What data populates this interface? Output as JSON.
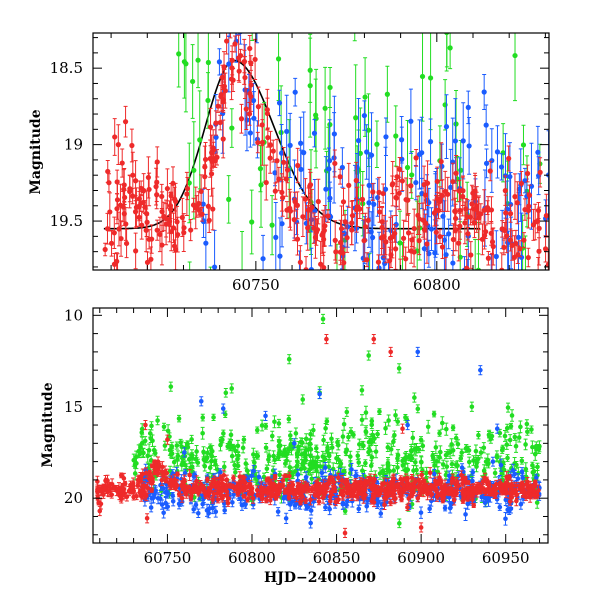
{
  "chart_data": [
    {
      "type": "scatter",
      "panel": "top",
      "title": "",
      "xlabel": "",
      "ylabel": "Magnitude",
      "xlim": [
        60705,
        60831
      ],
      "ylim": [
        18.27,
        19.82
      ],
      "y_inverted": true,
      "x_ticks": [
        60750,
        60800
      ],
      "x_tick_labels": [
        "60750",
        "60800"
      ],
      "y_ticks": [
        18.5,
        19,
        19.5
      ],
      "y_tick_labels": [
        "18.5",
        "19",
        "19.5"
      ],
      "grid": false,
      "legend": "none",
      "model_curve": {
        "color": "#000000",
        "baseline": 19.55,
        "peak_x": 60744,
        "peak_mag": 18.45,
        "rise_width": 8,
        "decay_width": 11,
        "x_range": [
          60708,
          60812
        ]
      },
      "series": [
        {
          "name": "green",
          "color": "#22dd22",
          "seed": 11,
          "x_range": [
            60728,
            60831
          ],
          "n_points": 95,
          "base": 19.3,
          "scatter": 0.55,
          "error_range": [
            0.12,
            0.35
          ],
          "bright_bias": 0.6
        },
        {
          "name": "blue",
          "color": "#1a5cff",
          "seed": 23,
          "x_range": [
            60735,
            60831
          ],
          "n_points": 150,
          "base": 19.45,
          "scatter": 0.32,
          "error_range": [
            0.08,
            0.3
          ],
          "flare": {
            "center": 60744,
            "amplitude": 1.05,
            "rise": 4,
            "decay": 7
          },
          "bright_bias": 0.25
        },
        {
          "name": "red",
          "color": "#ee2a2a",
          "seed": 37,
          "x_range": [
            60708,
            60831
          ],
          "n_points": 360,
          "base": 19.48,
          "scatter": 0.18,
          "error_range": [
            0.04,
            0.15
          ],
          "flare": {
            "center": 60744,
            "amplitude": 1.1,
            "rise": 4,
            "decay": 7
          },
          "extra_points": [
            {
              "x": 60709,
              "y": 19.55,
              "err": 0.1
            },
            {
              "x": 60711,
              "y": 18.95,
              "err": 0.12
            },
            {
              "x": 60712,
              "y": 19.0,
              "err": 0.13
            },
            {
              "x": 60714,
              "y": 18.85,
              "err": 0.1
            },
            {
              "x": 60716,
              "y": 19.2,
              "err": 0.15
            },
            {
              "x": 60719,
              "y": 19.3,
              "err": 0.11
            },
            {
              "x": 60721,
              "y": 19.75,
              "err": 0.08
            }
          ]
        }
      ]
    },
    {
      "type": "scatter",
      "panel": "bottom",
      "title": "",
      "xlabel": "HJD−2400000",
      "ylabel": "Magnitude",
      "xlim": [
        60706,
        60975
      ],
      "ylim": [
        9.6,
        22.45
      ],
      "y_inverted": true,
      "x_ticks": [
        60750,
        60800,
        60850,
        60900,
        60950
      ],
      "x_tick_labels": [
        "60750",
        "60800",
        "60850",
        "60900",
        "60950"
      ],
      "y_ticks": [
        10,
        15,
        20
      ],
      "y_tick_labels": [
        "10",
        "15",
        "20"
      ],
      "grid": false,
      "legend": "none",
      "series": [
        {
          "name": "green",
          "color": "#22dd22",
          "seed": 51,
          "x_range": [
            60730,
            60970
          ],
          "n_points": 520,
          "base": 17.9,
          "scatter": 1.15,
          "error_range": [
            0.15,
            0.35
          ],
          "outliers": [
            {
              "x": 60842,
              "y": 10.2
            },
            {
              "x": 60822,
              "y": 12.4
            },
            {
              "x": 60869,
              "y": 12.2
            },
            {
              "x": 60887,
              "y": 12.9
            },
            {
              "x": 60752,
              "y": 13.9
            },
            {
              "x": 60788,
              "y": 14.0
            },
            {
              "x": 60865,
              "y": 14.1
            },
            {
              "x": 60830,
              "y": 14.6
            },
            {
              "x": 60930,
              "y": 15.0
            },
            {
              "x": 60896,
              "y": 14.5
            }
          ]
        },
        {
          "name": "blue",
          "color": "#1a5cff",
          "seed": 63,
          "x_range": [
            60735,
            60970
          ],
          "n_points": 380,
          "base": 19.7,
          "scatter": 0.55,
          "error_range": [
            0.15,
            0.35
          ],
          "outliers": [
            {
              "x": 60898,
              "y": 12.0
            },
            {
              "x": 60935,
              "y": 13.0
            },
            {
              "x": 60770,
              "y": 14.7
            },
            {
              "x": 60840,
              "y": 14.3
            },
            {
              "x": 60783,
              "y": 15.1
            },
            {
              "x": 60808,
              "y": 15.5
            },
            {
              "x": 60892,
              "y": 16.0
            },
            {
              "x": 60945,
              "y": 16.2
            },
            {
              "x": 60760,
              "y": 17.5
            },
            {
              "x": 60825,
              "y": 17.0
            }
          ]
        },
        {
          "name": "red",
          "color": "#ee2a2a",
          "seed": 77,
          "x_range": [
            60708,
            60970
          ],
          "n_points": 700,
          "base": 19.5,
          "scatter": 0.32,
          "error_range": [
            0.1,
            0.3
          ],
          "flare": {
            "center": 60744,
            "amplitude": 1.0,
            "rise": 4,
            "decay": 7
          },
          "outliers": [
            {
              "x": 60844,
              "y": 11.3
            },
            {
              "x": 60872,
              "y": 11.3
            },
            {
              "x": 60882,
              "y": 12.0
            },
            {
              "x": 60737,
              "y": 16.0
            },
            {
              "x": 60750,
              "y": 16.8
            },
            {
              "x": 60889,
              "y": 16.2
            },
            {
              "x": 60710,
              "y": 20.7
            },
            {
              "x": 60738,
              "y": 21.1
            },
            {
              "x": 60855,
              "y": 21.9
            },
            {
              "x": 60900,
              "y": 21.6
            }
          ]
        }
      ]
    }
  ]
}
